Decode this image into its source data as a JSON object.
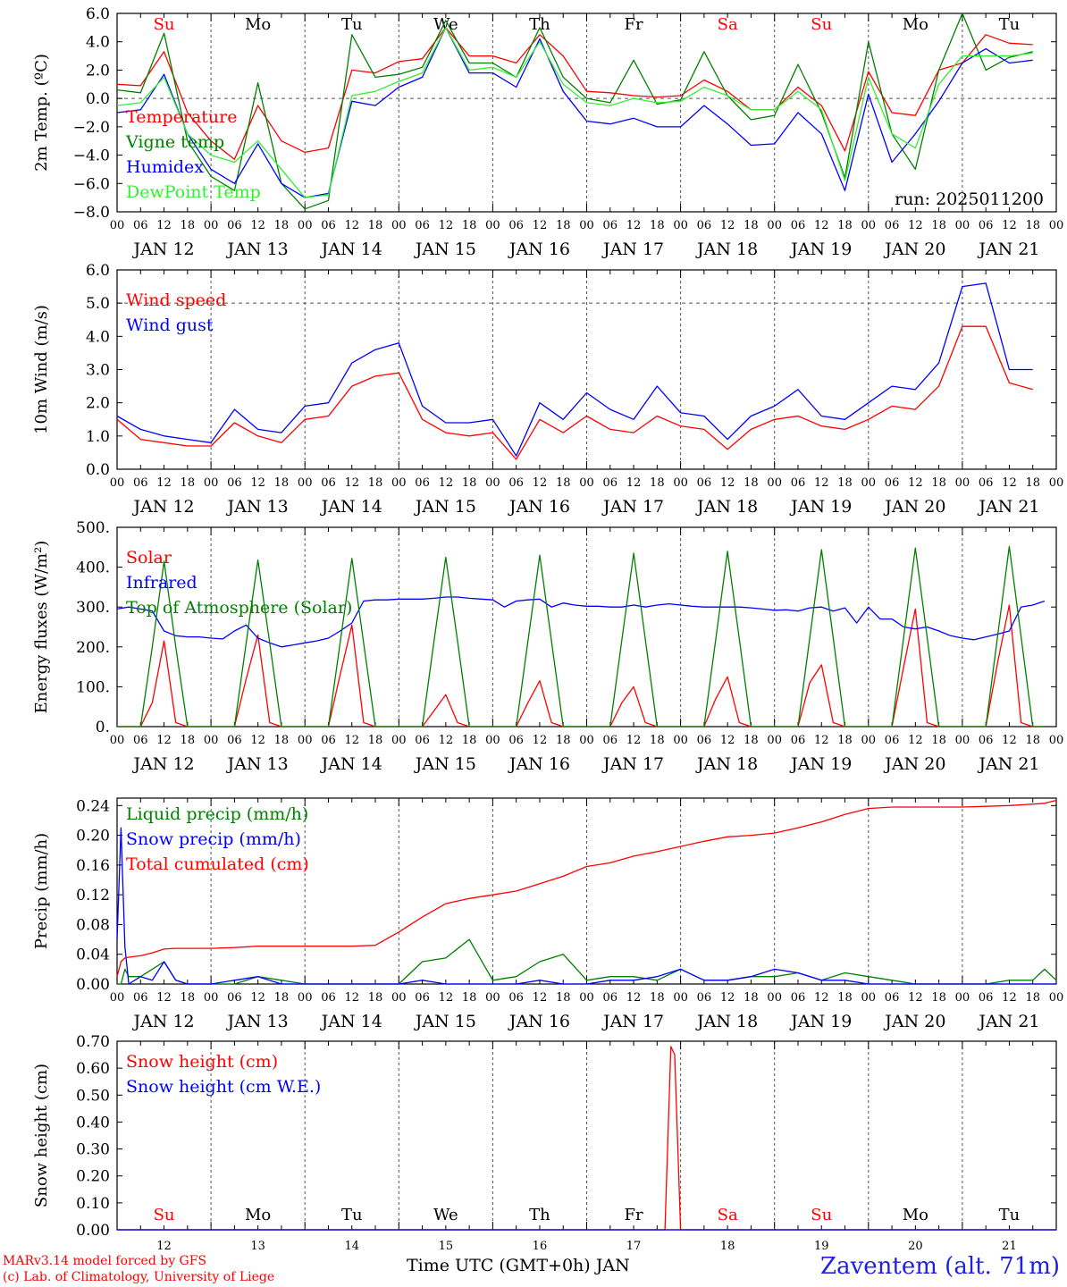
{
  "run_label": "run: 2025011200",
  "days": {
    "dates": [
      "JAN 12",
      "JAN 13",
      "JAN 14",
      "JAN 15",
      "JAN 16",
      "JAN 17",
      "JAN 18",
      "JAN 19",
      "JAN 20",
      "JAN 21"
    ],
    "weekdays": [
      "Su",
      "Mo",
      "Tu",
      "We",
      "Th",
      "Fr",
      "Sa",
      "Su",
      "Mo",
      "Tu"
    ],
    "weekend": [
      true,
      false,
      false,
      false,
      false,
      false,
      true,
      true,
      false,
      false
    ],
    "day_numbers": [
      "12",
      "13",
      "14",
      "15",
      "16",
      "17",
      "18",
      "19",
      "20",
      "21"
    ],
    "hour_ticks": [
      "00",
      "06",
      "12",
      "18"
    ],
    "final_tick": "00"
  },
  "colors": {
    "red": "#ff0000",
    "green": "#008000",
    "blue": "#0000ff",
    "light_green": "#33ee33",
    "weekday": "#000000",
    "weekend": "#ff0000"
  },
  "footer": {
    "model": "MARv3.14 model forced by GFS",
    "lab": "(c) Lab. of Climatology, University of Liege",
    "xlabel": "Time UTC (GMT+0h) JAN",
    "station": "Zaventem (alt. 71m)"
  },
  "chart_data": [
    {
      "type": "line",
      "ylabel": "2m Temp. (ºC)",
      "ylim": [
        -8,
        6
      ],
      "yticks": [
        "6.0",
        "4.0",
        "2.0",
        "0.0",
        "−2.0",
        "−4.0",
        "−6.0",
        "−8.0"
      ],
      "ytick_values": [
        6,
        4,
        2,
        0,
        -2,
        -4,
        -6,
        -8
      ],
      "ref_line": 0,
      "weekday_labels": "top",
      "x_hours": [
        0,
        6,
        12,
        18,
        24,
        30,
        36,
        42,
        48,
        54,
        60,
        66,
        72,
        78,
        84,
        90,
        96,
        102,
        108,
        114,
        120,
        126,
        132,
        138,
        144,
        150,
        156,
        162,
        168,
        174,
        180,
        186,
        192,
        198,
        204,
        210,
        216,
        222,
        228,
        234
      ],
      "series": [
        {
          "name": "Temperature",
          "color": "red",
          "values": [
            1.0,
            0.9,
            3.3,
            -1.0,
            -3.0,
            -4.3,
            -0.5,
            -3.0,
            -3.8,
            -3.5,
            2.0,
            1.8,
            2.6,
            2.8,
            5.0,
            3.0,
            3.0,
            2.5,
            4.5,
            3.0,
            0.5,
            0.4,
            0.2,
            0.1,
            0.2,
            1.3,
            0.5,
            -0.8,
            -0.8,
            0.8,
            -0.5,
            -3.7,
            1.9,
            -1.0,
            -1.2,
            2.0,
            2.5,
            4.5,
            3.9,
            3.8
          ]
        },
        {
          "name": "Vigne temp",
          "color": "green",
          "values": [
            0.6,
            0.4,
            4.6,
            -3.0,
            -5.5,
            -6.5,
            1.1,
            -6.0,
            -7.8,
            -7.2,
            4.5,
            1.5,
            1.7,
            2.2,
            5.5,
            2.5,
            2.5,
            1.5,
            5.0,
            1.5,
            0.0,
            -0.3,
            2.7,
            -0.4,
            -0.1,
            3.3,
            0.2,
            -1.5,
            -1.2,
            2.4,
            -1.0,
            -5.6,
            4.0,
            -2.5,
            -5.0,
            2.0,
            6.0,
            2.0,
            2.9,
            3.3
          ]
        },
        {
          "name": "Humidex",
          "color": "blue",
          "values": [
            -1.0,
            -0.8,
            1.7,
            -2.5,
            -5.0,
            -6.0,
            -3.2,
            -6.0,
            -7.0,
            -6.7,
            -0.2,
            -0.5,
            0.8,
            1.5,
            5.0,
            1.8,
            1.8,
            0.8,
            4.2,
            0.5,
            -1.6,
            -1.8,
            -1.4,
            -2.0,
            -2.0,
            -0.5,
            -1.8,
            -3.3,
            -3.2,
            -1.0,
            -2.5,
            -6.5,
            0.3,
            -4.5,
            -2.5,
            -0.2,
            2.5,
            3.5,
            2.5,
            2.7
          ]
        },
        {
          "name": "DewPoint Temp",
          "color": "light_green",
          "values": [
            -0.5,
            -0.3,
            1.5,
            -2.5,
            -4.0,
            -4.5,
            -3.0,
            -5.0,
            -7.0,
            -6.8,
            0.2,
            0.5,
            1.2,
            1.8,
            5.0,
            2.0,
            2.2,
            1.5,
            4.0,
            1.0,
            -0.3,
            -0.5,
            0.0,
            -0.3,
            -0.2,
            0.8,
            0.2,
            -0.8,
            -0.8,
            0.5,
            -0.8,
            -5.8,
            1.5,
            -2.5,
            -3.5,
            1.0,
            3.0,
            3.0,
            3.0,
            3.2
          ]
        }
      ]
    },
    {
      "type": "line",
      "ylabel": "10m Wind (m/s)",
      "ylim": [
        0,
        6
      ],
      "yticks": [
        "6.0",
        "5.0",
        "4.0",
        "3.0",
        "2.0",
        "1.0",
        "0.0"
      ],
      "ytick_values": [
        6,
        5,
        4,
        3,
        2,
        1,
        0
      ],
      "ref_line": 5,
      "x_hours": [
        0,
        6,
        12,
        18,
        24,
        30,
        36,
        42,
        48,
        54,
        60,
        66,
        72,
        78,
        84,
        90,
        96,
        102,
        108,
        114,
        120,
        126,
        132,
        138,
        144,
        150,
        156,
        162,
        168,
        174,
        180,
        186,
        192,
        198,
        204,
        210,
        216,
        222,
        228,
        234
      ],
      "series": [
        {
          "name": "Wind speed",
          "color": "red",
          "values": [
            1.5,
            0.9,
            0.8,
            0.7,
            0.7,
            1.4,
            1.0,
            0.8,
            1.5,
            1.6,
            2.5,
            2.8,
            2.9,
            1.5,
            1.1,
            1.0,
            1.1,
            0.3,
            1.5,
            1.1,
            1.6,
            1.2,
            1.1,
            1.6,
            1.3,
            1.2,
            0.6,
            1.2,
            1.5,
            1.6,
            1.3,
            1.2,
            1.5,
            1.9,
            1.8,
            2.5,
            4.3,
            4.3,
            2.6,
            2.4
          ]
        },
        {
          "name": "Wind gust",
          "color": "blue",
          "values": [
            1.6,
            1.2,
            1.0,
            0.9,
            0.8,
            1.8,
            1.2,
            1.1,
            1.9,
            2.0,
            3.2,
            3.6,
            3.8,
            1.9,
            1.4,
            1.4,
            1.5,
            0.4,
            2.0,
            1.5,
            2.3,
            1.8,
            1.5,
            2.5,
            1.7,
            1.6,
            0.9,
            1.6,
            1.9,
            2.4,
            1.6,
            1.5,
            2.0,
            2.5,
            2.4,
            3.2,
            5.5,
            5.6,
            3.0,
            3.0
          ]
        }
      ]
    },
    {
      "type": "line",
      "ylabel": "Energy fluxes (W/m²)",
      "ylim": [
        0,
        500
      ],
      "yticks": [
        "500.",
        "400.",
        "300.",
        "200.",
        "100.",
        "0."
      ],
      "ytick_values": [
        500,
        400,
        300,
        200,
        100,
        0
      ],
      "x_hours": [
        0,
        3,
        6,
        9,
        12,
        15,
        18,
        21,
        24,
        27,
        30,
        33,
        36,
        39,
        42,
        45,
        48,
        51,
        54,
        57,
        60,
        63,
        66,
        69,
        72,
        75,
        78,
        81,
        84,
        87,
        90,
        93,
        96,
        99,
        102,
        105,
        108,
        111,
        114,
        117,
        120,
        123,
        126,
        129,
        132,
        135,
        138,
        141,
        144,
        147,
        150,
        153,
        156,
        159,
        162,
        165,
        168,
        171,
        174,
        177,
        180,
        183,
        186,
        189,
        192,
        195,
        198,
        201,
        204,
        207,
        210,
        213,
        216,
        219,
        222,
        225,
        228,
        231,
        234,
        237
      ],
      "series": [
        {
          "name": "Solar",
          "color": "red",
          "values": [
            0,
            0,
            0,
            60,
            215,
            10,
            0,
            0,
            0,
            0,
            0,
            120,
            230,
            10,
            0,
            0,
            0,
            0,
            0,
            130,
            255,
            10,
            0,
            0,
            0,
            0,
            0,
            40,
            80,
            10,
            0,
            0,
            0,
            0,
            0,
            60,
            115,
            10,
            0,
            0,
            0,
            0,
            0,
            60,
            100,
            10,
            0,
            0,
            0,
            0,
            0,
            70,
            125,
            10,
            0,
            0,
            0,
            0,
            0,
            110,
            155,
            10,
            0,
            0,
            0,
            0,
            0,
            150,
            295,
            10,
            0,
            0,
            0,
            0,
            0,
            160,
            305,
            10,
            0,
            0
          ]
        },
        {
          "name": "Infrared",
          "color": "blue",
          "values": [
            295,
            300,
            295,
            290,
            240,
            228,
            225,
            225,
            222,
            220,
            240,
            255,
            222,
            210,
            200,
            205,
            210,
            215,
            222,
            240,
            260,
            315,
            318,
            318,
            320,
            320,
            320,
            322,
            325,
            325,
            322,
            320,
            318,
            300,
            315,
            318,
            320,
            300,
            310,
            305,
            302,
            302,
            300,
            300,
            305,
            300,
            305,
            308,
            305,
            302,
            300,
            300,
            300,
            300,
            298,
            295,
            292,
            293,
            290,
            298,
            300,
            290,
            298,
            260,
            300,
            270,
            270,
            250,
            245,
            250,
            240,
            228,
            222,
            218,
            225,
            232,
            240,
            300,
            305,
            315
          ]
        },
        {
          "name": "Top of Atmosphere (Solar)",
          "color": "green",
          "values": [
            0,
            0,
            0,
            200,
            415,
            200,
            0,
            0,
            0,
            0,
            0,
            210,
            418,
            210,
            0,
            0,
            0,
            0,
            0,
            210,
            422,
            210,
            0,
            0,
            0,
            0,
            0,
            215,
            425,
            215,
            0,
            0,
            0,
            0,
            0,
            215,
            430,
            215,
            0,
            0,
            0,
            0,
            0,
            218,
            435,
            218,
            0,
            0,
            0,
            0,
            0,
            220,
            440,
            220,
            0,
            0,
            0,
            0,
            0,
            222,
            444,
            222,
            0,
            0,
            0,
            0,
            0,
            224,
            448,
            224,
            0,
            0,
            0,
            0,
            0,
            226,
            452,
            226,
            0,
            0
          ]
        }
      ]
    },
    {
      "type": "line",
      "ylabel": "Precip (mm/h)",
      "ylim": [
        0,
        0.25
      ],
      "yticks": [
        "0.24",
        "0.20",
        "0.16",
        "0.12",
        "0.08",
        "0.04",
        "0.00"
      ],
      "ytick_values": [
        0.24,
        0.2,
        0.16,
        0.12,
        0.08,
        0.04,
        0.0
      ],
      "x_hours": [
        0,
        1,
        2,
        3,
        6,
        9,
        12,
        15,
        18,
        21,
        24,
        30,
        36,
        42,
        48,
        54,
        60,
        66,
        72,
        78,
        84,
        90,
        96,
        102,
        108,
        114,
        120,
        126,
        132,
        138,
        144,
        150,
        156,
        162,
        168,
        174,
        180,
        186,
        192,
        198,
        204,
        210,
        216,
        222,
        228,
        234,
        237,
        240
      ],
      "series": [
        {
          "name": "Liquid precip (mm/h)",
          "color": "green",
          "values": [
            0,
            0,
            0.02,
            0.01,
            0.01,
            0.02,
            0.03,
            0.005,
            0,
            0,
            0,
            0,
            0.01,
            0.005,
            0,
            0,
            0,
            0,
            0,
            0.03,
            0.035,
            0.06,
            0.005,
            0.01,
            0.03,
            0.04,
            0.005,
            0.01,
            0.01,
            0.005,
            0.02,
            0.005,
            0.005,
            0.01,
            0.01,
            0.015,
            0.005,
            0.015,
            0.01,
            0.005,
            0,
            0,
            0,
            0,
            0.005,
            0.005,
            0.02,
            0.005
          ]
        },
        {
          "name": "Snow precip (mm/h)",
          "color": "blue",
          "values": [
            0.06,
            0.21,
            0.05,
            0,
            0.01,
            0.005,
            0.03,
            0.005,
            0,
            0,
            0,
            0.005,
            0.01,
            0,
            0,
            0,
            0,
            0,
            0,
            0.005,
            0,
            0,
            0,
            0,
            0.005,
            0,
            0,
            0.005,
            0.005,
            0.01,
            0.02,
            0.005,
            0.005,
            0.01,
            0.02,
            0.015,
            0.005,
            0.005,
            0,
            0,
            0,
            0,
            0,
            0,
            0,
            0,
            0,
            0
          ]
        },
        {
          "name": "Total cumulated (cm)",
          "color": "red",
          "values": [
            0.01,
            0.03,
            0.035,
            0.036,
            0.038,
            0.042,
            0.047,
            0.048,
            0.048,
            0.048,
            0.048,
            0.049,
            0.051,
            0.051,
            0.051,
            0.051,
            0.051,
            0.052,
            0.07,
            0.09,
            0.108,
            0.115,
            0.12,
            0.125,
            0.135,
            0.145,
            0.158,
            0.163,
            0.172,
            0.178,
            0.185,
            0.192,
            0.198,
            0.2,
            0.203,
            0.21,
            0.218,
            0.228,
            0.236,
            0.238,
            0.238,
            0.238,
            0.238,
            0.239,
            0.24,
            0.242,
            0.243,
            0.247
          ]
        }
      ]
    },
    {
      "type": "line",
      "ylabel": "Snow height (cm)",
      "ylim": [
        0,
        0.7
      ],
      "yticks": [
        "0.70",
        "0.60",
        "0.50",
        "0.40",
        "0.30",
        "0.20",
        "0.10",
        "0.00"
      ],
      "ytick_values": [
        0.7,
        0.6,
        0.5,
        0.4,
        0.3,
        0.2,
        0.1,
        0.0
      ],
      "weekday_labels": "bottom",
      "x_hours": [
        0,
        140,
        141.5,
        142.5,
        144,
        145,
        240
      ],
      "series": [
        {
          "name": "Snow height (cm)",
          "color": "red",
          "values": [
            0,
            0,
            0.68,
            0.65,
            0,
            0,
            0
          ]
        },
        {
          "name": "Snow height (cm W.E.)",
          "color": "blue",
          "values": [
            0,
            0,
            0,
            0,
            0,
            0,
            0
          ]
        }
      ]
    }
  ]
}
